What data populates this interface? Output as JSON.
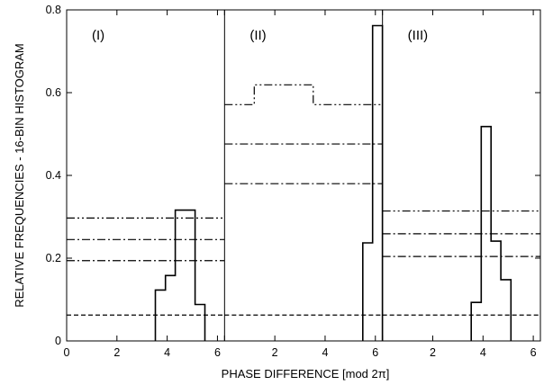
{
  "chart_data": {
    "type": "step-histogram",
    "xlabel": "PHASE DIFFERENCE [mod 2π]",
    "ylabel": "RELATIVE FREQUENCIES - 16-BIN HISTOGRAM",
    "ylim": [
      0,
      0.8
    ],
    "y_ticks": [
      0,
      0.2,
      0.4,
      0.6,
      0.8
    ],
    "y_tick_labels": [
      "0",
      "0.2",
      "0.4",
      "0.6",
      "0.8"
    ],
    "xlim": [
      0,
      6.283
    ],
    "x_ticks": [
      0,
      2,
      4,
      6
    ],
    "x_tick_labels": [
      "0",
      "2",
      "4",
      "6"
    ],
    "bin_count": 16,
    "grid": false,
    "legend": "none",
    "panels": [
      {
        "label": "(I)",
        "x_tick_labels": [
          "0",
          "2",
          "4",
          "6"
        ],
        "histogram": [
          {
            "x0": 3.53,
            "x1": 3.93,
            "y": 0.123
          },
          {
            "x0": 3.93,
            "x1": 4.32,
            "y": 0.158
          },
          {
            "x0": 4.32,
            "x1": 4.71,
            "y": 0.316
          },
          {
            "x0": 4.71,
            "x1": 5.11,
            "y": 0.316
          },
          {
            "x0": 5.11,
            "x1": 5.5,
            "y": 0.088
          }
        ],
        "reference_lines": [
          {
            "style": "dashed",
            "y": 0.0625
          },
          {
            "style": "dash-dot",
            "y": 0.194
          },
          {
            "style": "dash-dot",
            "y": 0.245
          },
          {
            "style": "dash-dot-dot",
            "y": 0.297
          }
        ]
      },
      {
        "label": "(II)",
        "x_tick_labels": [
          "2",
          "4",
          "6"
        ],
        "histogram": [
          {
            "x0": 5.5,
            "x1": 5.89,
            "y": 0.237
          },
          {
            "x0": 5.89,
            "x1": 6.28,
            "y": 0.762
          }
        ],
        "reference_lines": [
          {
            "style": "dashed",
            "y": 0.0625
          },
          {
            "style": "dash-dot",
            "y": 0.38
          },
          {
            "style": "dash-dot",
            "y": 0.476
          },
          {
            "style": "dash-dot-dot-step",
            "points": [
              [
                0,
                0.571
              ],
              [
                1.18,
                0.571
              ],
              [
                1.18,
                0.619
              ],
              [
                3.53,
                0.619
              ],
              [
                3.53,
                0.571
              ],
              [
                6.283,
                0.571
              ]
            ]
          }
        ]
      },
      {
        "label": "(III)",
        "x_tick_labels": [
          "2",
          "4",
          "6"
        ],
        "histogram": [
          {
            "x0": 3.53,
            "x1": 3.93,
            "y": 0.093
          },
          {
            "x0": 3.93,
            "x1": 4.32,
            "y": 0.518
          },
          {
            "x0": 4.32,
            "x1": 4.71,
            "y": 0.241
          },
          {
            "x0": 4.71,
            "x1": 5.11,
            "y": 0.148
          }
        ],
        "reference_lines": [
          {
            "style": "dashed",
            "y": 0.0625
          },
          {
            "style": "dash-dot",
            "y": 0.204
          },
          {
            "style": "dash-dot",
            "y": 0.259
          },
          {
            "style": "dash-dot-dot",
            "y": 0.314
          }
        ]
      }
    ]
  }
}
